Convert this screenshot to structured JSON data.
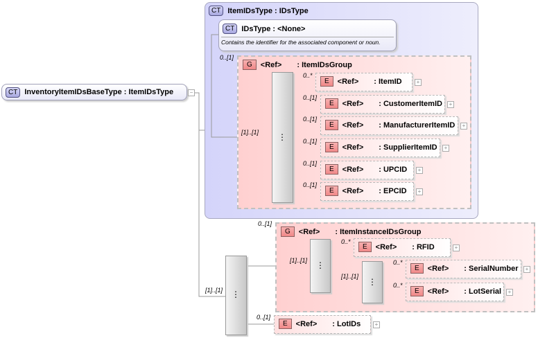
{
  "root": {
    "tag": "CT",
    "name": "InventoryItemIDsBaseType",
    "type": "ItemIDsType"
  },
  "itemIDsType": {
    "tag": "CT",
    "name": "ItemIDsType",
    "type": "IDsType"
  },
  "idsType": {
    "tag": "CT",
    "name": "IDsType",
    "type": "<None>",
    "description": "Contains the identifier for the associated component or noun."
  },
  "itemIDsGroup": {
    "tag": "G",
    "ref": "<Ref>",
    "name": "ItemIDsGroup",
    "cardinality": "0..[1]",
    "seq_cardinality": "[1]..[1]",
    "elements": [
      {
        "tag": "E",
        "ref": "<Ref>",
        "name": "ItemID",
        "cardinality": "0..*"
      },
      {
        "tag": "E",
        "ref": "<Ref>",
        "name": "CustomerItemID",
        "cardinality": "0..[1]"
      },
      {
        "tag": "E",
        "ref": "<Ref>",
        "name": "ManufacturerItemID",
        "cardinality": "0..[1]"
      },
      {
        "tag": "E",
        "ref": "<Ref>",
        "name": "SupplierItemID",
        "cardinality": "0..[1]"
      },
      {
        "tag": "E",
        "ref": "<Ref>",
        "name": "UPCID",
        "cardinality": "0..[1]"
      },
      {
        "tag": "E",
        "ref": "<Ref>",
        "name": "EPCID",
        "cardinality": "0..[1]"
      }
    ]
  },
  "mainSeq": {
    "cardinality": "[1]..[1]"
  },
  "instanceGroup": {
    "tag": "G",
    "ref": "<Ref>",
    "name": "ItemInstanceIDsGroup",
    "cardinality": "0..[1]",
    "seq_cardinality": "[1]..[1]",
    "inner_seq_cardinality": "[1]..[1]",
    "rfid": {
      "tag": "E",
      "ref": "<Ref>",
      "name": "RFID",
      "cardinality": "0..*"
    },
    "serial": {
      "tag": "E",
      "ref": "<Ref>",
      "name": "SerialNumber",
      "cardinality": "0..*"
    },
    "lotserial": {
      "tag": "E",
      "ref": "<Ref>",
      "name": "LotSerial",
      "cardinality": "0..*"
    }
  },
  "lotIDs": {
    "tag": "E",
    "ref": "<Ref>",
    "name": "LotIDs",
    "cardinality": "0..[1]"
  }
}
